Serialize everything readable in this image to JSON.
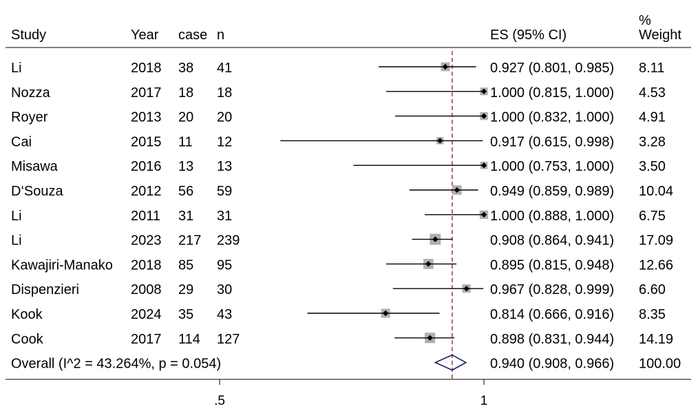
{
  "chart_data": {
    "type": "forest",
    "columns": {
      "study": "Study",
      "year": "Year",
      "case": "case",
      "n": "n",
      "es": "ES (95% CI)",
      "weight_line1": "%",
      "weight_line2": "Weight"
    },
    "rows": [
      {
        "study": "Li",
        "year": "2018",
        "case": "38",
        "n": "41",
        "es": 0.927,
        "lo": 0.801,
        "hi": 0.985,
        "ci_text": "0.927 (0.801, 0.985)",
        "weight": "8.11"
      },
      {
        "study": "Nozza",
        "year": "2017",
        "case": "18",
        "n": "18",
        "es": 1.0,
        "lo": 0.815,
        "hi": 1.0,
        "ci_text": "1.000 (0.815, 1.000)",
        "weight": "4.53"
      },
      {
        "study": "Royer",
        "year": "2013",
        "case": "20",
        "n": "20",
        "es": 1.0,
        "lo": 0.832,
        "hi": 1.0,
        "ci_text": "1.000 (0.832, 1.000)",
        "weight": "4.91"
      },
      {
        "study": "Cai",
        "year": "2015",
        "case": "11",
        "n": "12",
        "es": 0.917,
        "lo": 0.615,
        "hi": 0.998,
        "ci_text": "0.917 (0.615, 0.998)",
        "weight": "3.28"
      },
      {
        "study": "Misawa",
        "year": "2016",
        "case": "13",
        "n": "13",
        "es": 1.0,
        "lo": 0.753,
        "hi": 1.0,
        "ci_text": "1.000 (0.753, 1.000)",
        "weight": "3.50"
      },
      {
        "study": "D‘Souza",
        "year": "2012",
        "case": "56",
        "n": "59",
        "es": 0.949,
        "lo": 0.859,
        "hi": 0.989,
        "ci_text": "0.949 (0.859, 0.989)",
        "weight": "10.04"
      },
      {
        "study": "Li",
        "year": "2011",
        "case": "31",
        "n": "31",
        "es": 1.0,
        "lo": 0.888,
        "hi": 1.0,
        "ci_text": "1.000 (0.888, 1.000)",
        "weight": "6.75"
      },
      {
        "study": "Li",
        "year": "2023",
        "case": "217",
        "n": "239",
        "es": 0.908,
        "lo": 0.864,
        "hi": 0.941,
        "ci_text": "0.908 (0.864, 0.941)",
        "weight": "17.09"
      },
      {
        "study": "Kawajiri-Manako",
        "year": "2018",
        "case": "85",
        "n": "95",
        "es": 0.895,
        "lo": 0.815,
        "hi": 0.948,
        "ci_text": "0.895 (0.815, 0.948)",
        "weight": "12.66"
      },
      {
        "study": "Dispenzieri",
        "year": "2008",
        "case": "29",
        "n": "30",
        "es": 0.967,
        "lo": 0.828,
        "hi": 0.999,
        "ci_text": "0.967 (0.828, 0.999)",
        "weight": "6.60"
      },
      {
        "study": "Kook",
        "year": "2024",
        "case": "35",
        "n": "43",
        "es": 0.814,
        "lo": 0.666,
        "hi": 0.916,
        "ci_text": "0.814 (0.666, 0.916)",
        "weight": "8.35"
      },
      {
        "study": "Cook",
        "year": "2017",
        "case": "114",
        "n": "127",
        "es": 0.898,
        "lo": 0.831,
        "hi": 0.944,
        "ci_text": "0.898 (0.831, 0.944)",
        "weight": "14.19"
      }
    ],
    "overall": {
      "label": "Overall  (I^2 = 43.264%, p = 0.054)",
      "es": 0.94,
      "lo": 0.908,
      "hi": 0.966,
      "ci_text": "0.940 (0.908, 0.966)",
      "weight": "100.00"
    },
    "x_ticks": [
      {
        "value": 0.5,
        "label": ".5"
      },
      {
        "value": 1,
        "label": "1"
      }
    ],
    "colors": {
      "ci_line": "#000000",
      "weight_box": "#b0b0b0",
      "point": "#000000",
      "overall_diamond": "#1a1a66",
      "overall_line": "#8b1a2b"
    }
  }
}
